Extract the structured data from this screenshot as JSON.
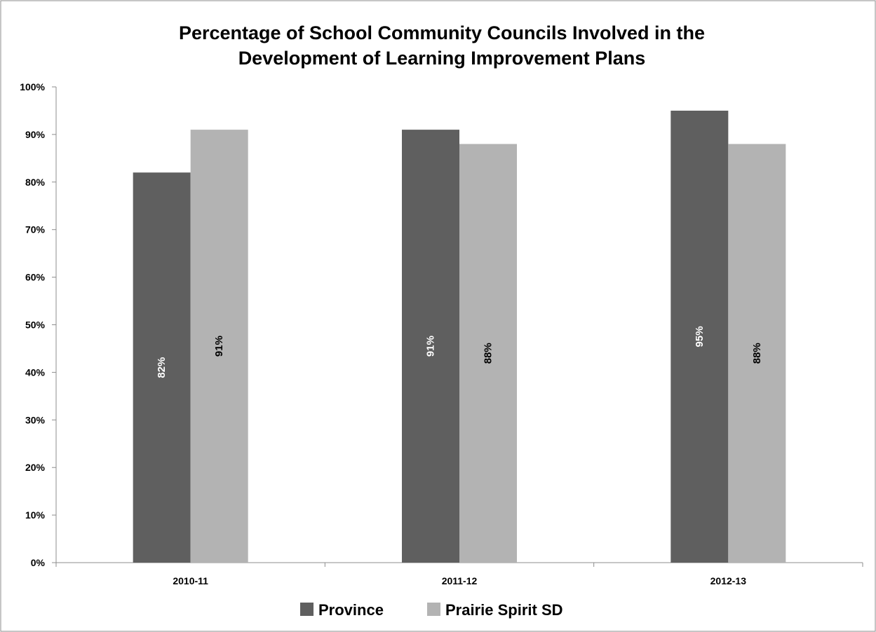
{
  "chart_data": {
    "type": "bar",
    "title_lines": [
      "Percentage of School Community Councils Involved in the",
      "Development of Learning Improvement Plans"
    ],
    "categories": [
      "2010-11",
      "2011-12",
      "2012-13"
    ],
    "series": [
      {
        "name": "Province",
        "values": [
          82,
          91,
          95
        ],
        "labels": [
          "82%",
          "91%",
          "95%"
        ],
        "color": "#5f5f5f",
        "label_color": "#ffffff"
      },
      {
        "name": "Prairie Spirit SD",
        "values": [
          91,
          88,
          88
        ],
        "labels": [
          "91%",
          "88%",
          "88%"
        ],
        "color": "#b3b3b3",
        "label_color": "#000000"
      }
    ],
    "ylim": [
      0,
      100
    ],
    "yticks": [
      0,
      10,
      20,
      30,
      40,
      50,
      60,
      70,
      80,
      90,
      100
    ],
    "ytick_labels": [
      "0%",
      "10%",
      "20%",
      "30%",
      "40%",
      "50%",
      "60%",
      "70%",
      "80%",
      "90%",
      "100%"
    ],
    "grid": false,
    "legend_position": "bottom",
    "xlabel": "",
    "ylabel": ""
  }
}
